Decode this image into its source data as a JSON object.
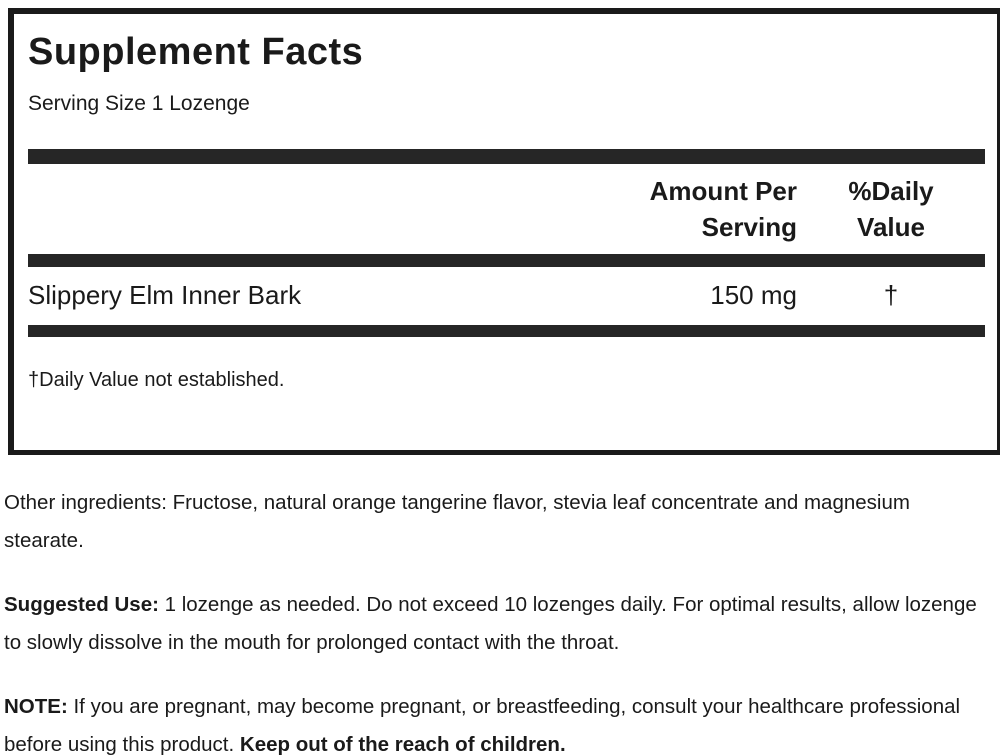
{
  "label": {
    "title": "Supplement Facts",
    "serving_size": "Serving Size 1 Lozenge",
    "header": {
      "amount_per_serving": "Amount Per\nServing",
      "percent_daily_value": "%Daily\nValue"
    },
    "rows": [
      {
        "name": "Slippery Elm Inner Bark",
        "amount": "150 mg",
        "daily_value": "†"
      }
    ],
    "footnote": "†Daily Value not established."
  },
  "other_ingredients": {
    "text": "Other ingredients: Fructose, natural orange tangerine flavor, stevia leaf concentrate and magnesium stearate."
  },
  "suggested_use": {
    "lead": "Suggested Use:",
    "text": " 1 lozenge as needed. Do not exceed 10 lozenges daily. For optimal results, allow lozenge to slowly dissolve in the mouth for prolonged contact with the throat."
  },
  "note": {
    "lead": "NOTE:",
    "text": " If you are pregnant, may become pregnant, or breastfeeding, consult your healthcare professional before using this product. ",
    "emphasis": "Keep out of the reach of children."
  },
  "colors": {
    "text": "#1a1a1a",
    "rule": "#262626",
    "border": "#1a1a1a",
    "background": "#ffffff"
  }
}
